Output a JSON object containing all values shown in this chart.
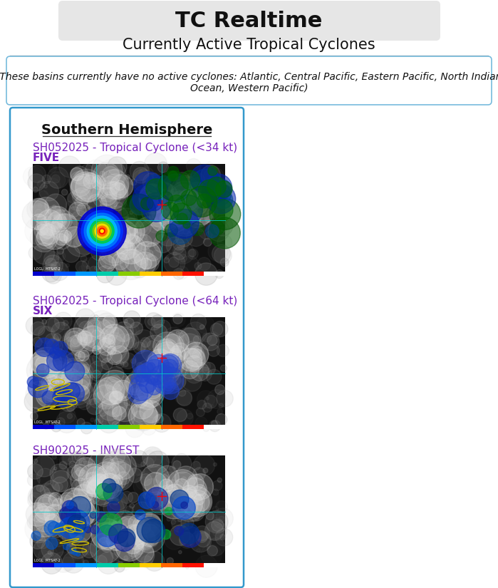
{
  "title": "TC Realtime",
  "subtitle": "Currently Active Tropical Cyclones",
  "no_active_line1": "(These basins currently have no active cyclones: Atlantic, Central Pacific, Eastern Pacific, North Indian",
  "no_active_line2": "Ocean, Western Pacific)",
  "section_title": "Southern Hemisphere",
  "cyclones": [
    {
      "line1": "SH052025 - Tropical Cyclone (<34 kt)",
      "line2": "FIVE",
      "style": "tc_intense"
    },
    {
      "line1": "SH062025 - Tropical Cyclone (<64 kt)",
      "line2": "SIX",
      "style": "tc_moderate"
    },
    {
      "line1": "SH902025 - INVEST",
      "line2": "",
      "style": "invest"
    }
  ],
  "bg_color": "#ffffff",
  "title_box_color": "#e6e6e6",
  "panel_border_color": "#3399cc",
  "no_active_border_color": "#77bbdd",
  "link_color": "#7722bb",
  "section_title_color": "#111111",
  "separator_color": "#888888",
  "title_fontsize": 22,
  "subtitle_fontsize": 15,
  "section_fontsize": 14,
  "link_fontsize": 11,
  "noactive_fontsize": 10,
  "fig_width": 6.99,
  "fig_height": 8.25
}
